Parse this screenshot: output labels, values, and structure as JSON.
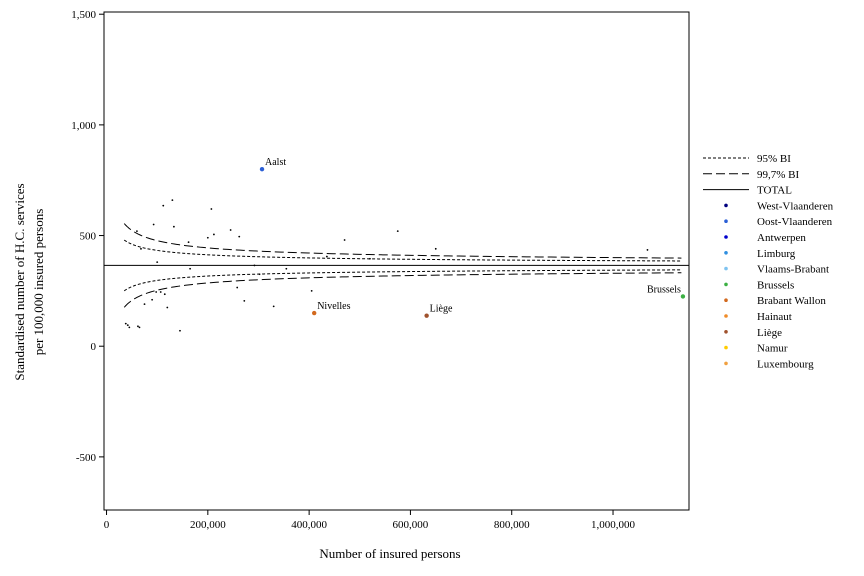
{
  "chart_data": {
    "type": "scatter",
    "xlabel": "Number of insured persons",
    "ylabel": [
      "Standardised number of H.C. services",
      "per 100,000 insured persons"
    ],
    "xlim": [
      -5000,
      1150000
    ],
    "ylim": [
      -740,
      1510
    ],
    "x_ticks": [
      {
        "v": 0,
        "label": "0"
      },
      {
        "v": 200000,
        "label": "200,000"
      },
      {
        "v": 400000,
        "label": "400,000"
      },
      {
        "v": 600000,
        "label": "600,000"
      },
      {
        "v": 800000,
        "label": "800,000"
      },
      {
        "v": 1000000,
        "label": "1,000,000"
      }
    ],
    "y_ticks": [
      {
        "v": -500,
        "label": "-500"
      },
      {
        "v": 0,
        "label": "0"
      },
      {
        "v": 500,
        "label": "500"
      },
      {
        "v": 1000,
        "label": "1,000"
      },
      {
        "v": 1500,
        "label": "1,500"
      }
    ],
    "total": 365,
    "limits": {
      "ci95_k": 3.55,
      "ci997_k": 5.86,
      "x_start": 35000,
      "x_end": 1135000
    },
    "legend": {
      "position": "right",
      "lines": [
        {
          "label": "95% BI",
          "dash": "short"
        },
        {
          "label": "99,7% BI",
          "dash": "long"
        },
        {
          "label": "TOTAL",
          "dash": "solid"
        }
      ],
      "provinces": [
        {
          "label": "West-Vlaanderen",
          "color": "#00007f"
        },
        {
          "label": "Oost-Vlaanderen",
          "color": "#2b5fd6"
        },
        {
          "label": "Antwerpen",
          "color": "#0000cc"
        },
        {
          "label": "Limburg",
          "color": "#2f8fe0"
        },
        {
          "label": "Vlaams-Brabant",
          "color": "#7fc3f0"
        },
        {
          "label": "Brussels",
          "color": "#3cb043"
        },
        {
          "label": "Brabant Wallon",
          "color": "#d2691e"
        },
        {
          "label": "Hainaut",
          "color": "#f08c28"
        },
        {
          "label": "Liège",
          "color": "#a0522d"
        },
        {
          "label": "Namur",
          "color": "#ffcc00"
        },
        {
          "label": "Luxembourg",
          "color": "#f0a040"
        }
      ]
    },
    "highlighted": [
      {
        "label": "Aalst",
        "x": 307000,
        "y": 800,
        "color": "#2b5fd6"
      },
      {
        "label": "Nivelles",
        "x": 410000,
        "y": 150,
        "color": "#d2691e"
      },
      {
        "label": "Liège",
        "x": 632000,
        "y": 138,
        "color": "#a0522d"
      },
      {
        "label": "Brussels",
        "x": 1138000,
        "y": 225,
        "color": "#3cb043"
      }
    ],
    "points": [
      [
        38000,
        102
      ],
      [
        42000,
        95
      ],
      [
        45000,
        85
      ],
      [
        60000,
        520
      ],
      [
        62000,
        90
      ],
      [
        65000,
        85
      ],
      [
        68000,
        440
      ],
      [
        75000,
        190
      ],
      [
        90000,
        210
      ],
      [
        93000,
        550
      ],
      [
        98000,
        245
      ],
      [
        100000,
        380
      ],
      [
        107000,
        245
      ],
      [
        112000,
        635
      ],
      [
        115000,
        235
      ],
      [
        120000,
        175
      ],
      [
        130000,
        660
      ],
      [
        133000,
        540
      ],
      [
        145000,
        70
      ],
      [
        162000,
        470
      ],
      [
        165000,
        350
      ],
      [
        200000,
        490
      ],
      [
        207000,
        620
      ],
      [
        212000,
        505
      ],
      [
        245000,
        525
      ],
      [
        258000,
        265
      ],
      [
        262000,
        495
      ],
      [
        272000,
        205
      ],
      [
        292000,
        365
      ],
      [
        302000,
        325
      ],
      [
        330000,
        180
      ],
      [
        355000,
        350
      ],
      [
        405000,
        250
      ],
      [
        435000,
        405
      ],
      [
        470000,
        480
      ],
      [
        520000,
        395
      ],
      [
        575000,
        520
      ],
      [
        650000,
        440
      ],
      [
        1068000,
        435
      ]
    ]
  }
}
